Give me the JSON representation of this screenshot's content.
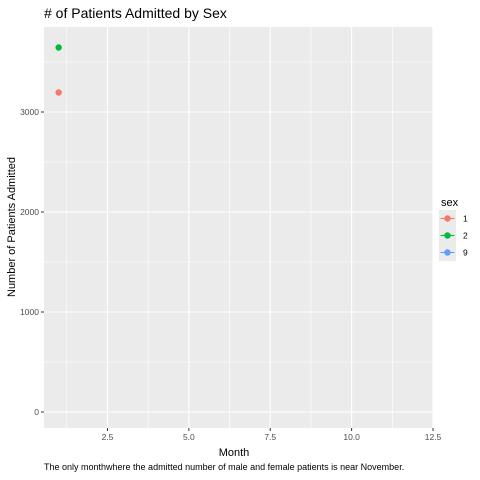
{
  "chart_data": {
    "type": "scatter",
    "title": "# of Patients Admitted by Sex",
    "xlabel": "Month",
    "ylabel": "Number of Patients Admitted",
    "caption": "The only monthwhere the admitted number of male and female patients is near November.",
    "xlim": [
      0.55,
      12.5
    ],
    "ylim": [
      -160,
      3850
    ],
    "x_ticks": [
      2.5,
      5.0,
      7.5,
      10.0,
      12.5
    ],
    "x_tick_labels": [
      "2.5",
      "5.0",
      "7.5",
      "10.0",
      "12.5"
    ],
    "y_ticks": [
      0,
      1000,
      2000,
      3000
    ],
    "y_tick_labels": [
      "0",
      "1000",
      "2000",
      "3000"
    ],
    "grid": true,
    "legend": {
      "title": "sex",
      "placement": "right"
    },
    "series": [
      {
        "name": "1",
        "color": "#F8766D",
        "points": [
          {
            "x": 1,
            "y": 3195
          }
        ]
      },
      {
        "name": "2",
        "color": "#00BA38",
        "points": [
          {
            "x": 1,
            "y": 3645
          }
        ]
      },
      {
        "name": "9",
        "color": "#619CFF",
        "points": []
      }
    ],
    "panel_background": "#EBEBEB",
    "grid_color": "#FFFFFF"
  }
}
